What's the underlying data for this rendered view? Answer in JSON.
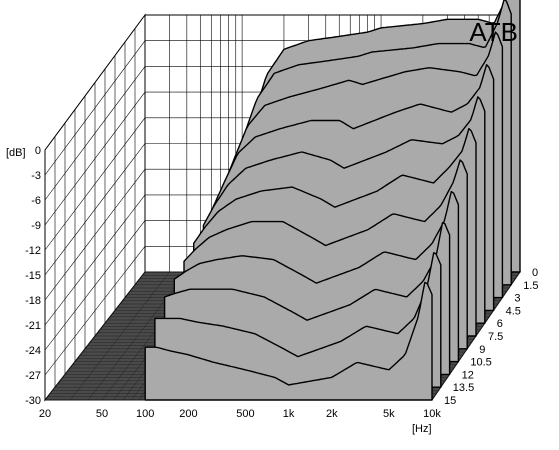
{
  "chart_data": {
    "type": "waterfall",
    "title": "ATB",
    "x_unit_label": "[Hz]",
    "y_unit_label": "[dB]",
    "x_ticks": [
      "20",
      "50",
      "100",
      "200",
      "500",
      "1k",
      "2k",
      "5k",
      "10k"
    ],
    "x_tick_values": [
      20,
      50,
      100,
      200,
      500,
      1000,
      2000,
      5000,
      10000
    ],
    "y_ticks": [
      "0",
      "-3",
      "-6",
      "-9",
      "-12",
      "-15",
      "-18",
      "-21",
      "-24",
      "-27",
      "-30"
    ],
    "y_tick_values": [
      0,
      -3,
      -6,
      -9,
      -12,
      -15,
      -18,
      -21,
      -24,
      -27,
      -30
    ],
    "z_ticks": [
      "0",
      "1.5",
      "3",
      "4.5",
      "6",
      "7.5",
      "9",
      "10.5",
      "12",
      "13.5",
      "15"
    ],
    "z_tick_values": [
      0,
      1.5,
      3,
      4.5,
      6,
      7.5,
      9,
      10.5,
      12,
      13.5,
      15
    ],
    "xlim": [
      20,
      10000
    ],
    "ylim": [
      -30,
      0
    ],
    "zlim": [
      0,
      15
    ],
    "x_scale": "log",
    "grid": true,
    "colors": {
      "fill": "#aaaaaa",
      "line": "#000000",
      "floor": "#4a4a4a",
      "background": "#ffffff"
    },
    "series": [
      {
        "name": "0",
        "x": [
          100,
          120,
          150,
          200,
          300,
          500,
          800,
          1000,
          2000,
          3000,
          5000,
          6500,
          8000,
          9000,
          10000
        ],
        "y": [
          -16,
          -12,
          -7,
          -4,
          -3,
          -2.5,
          -2,
          -1.5,
          -1,
          -0.5,
          -0.5,
          -1,
          2,
          6,
          3
        ]
      },
      {
        "name": "1.5",
        "x": [
          100,
          120,
          150,
          200,
          300,
          500,
          800,
          1000,
          2000,
          3000,
          5000,
          6500,
          8000,
          9000,
          10000
        ],
        "y": [
          -16.5,
          -12.5,
          -8,
          -5,
          -4,
          -3.5,
          -3,
          -2.5,
          -2,
          -1.5,
          -1.5,
          -2,
          1,
          4,
          2
        ]
      },
      {
        "name": "3",
        "x": [
          100,
          120,
          150,
          200,
          300,
          500,
          800,
          1000,
          2000,
          3000,
          5000,
          6500,
          8000,
          9000,
          10000
        ],
        "y": [
          -17,
          -13.5,
          -9.5,
          -7,
          -6,
          -5,
          -4,
          -4.5,
          -3,
          -2.5,
          -3,
          -3.5,
          -1,
          2,
          0
        ]
      },
      {
        "name": "4.5",
        "x": [
          100,
          120,
          150,
          200,
          300,
          500,
          800,
          1000,
          2000,
          3000,
          5000,
          6500,
          8000,
          9000,
          10000
        ],
        "y": [
          -17.5,
          -14.5,
          -11,
          -9,
          -8,
          -7,
          -7,
          -8,
          -6,
          -5,
          -6,
          -5,
          -3,
          0,
          -2
        ]
      },
      {
        "name": "6",
        "x": [
          100,
          120,
          150,
          200,
          300,
          500,
          800,
          1000,
          2000,
          3000,
          5000,
          6500,
          8000,
          9000,
          10000
        ],
        "y": [
          -18,
          -15.5,
          -13,
          -11,
          -10,
          -9,
          -10,
          -11,
          -9,
          -7.5,
          -8,
          -7,
          -5,
          -2,
          -4
        ]
      },
      {
        "name": "7.5",
        "x": [
          100,
          120,
          150,
          200,
          300,
          500,
          800,
          1000,
          2000,
          3000,
          5000,
          6500,
          8000,
          9000,
          10000
        ],
        "y": [
          -18.5,
          -16.5,
          -14.5,
          -13,
          -12,
          -11.5,
          -13,
          -14,
          -12,
          -10,
          -11,
          -9,
          -7,
          -4,
          -6
        ]
      },
      {
        "name": "9",
        "x": [
          100,
          120,
          150,
          200,
          300,
          500,
          800,
          1000,
          2000,
          3000,
          5000,
          6500,
          8000,
          9000,
          10000
        ],
        "y": [
          -19,
          -17.5,
          -16,
          -15,
          -14,
          -14,
          -16,
          -17,
          -15,
          -13,
          -14,
          -12,
          -9,
          -6,
          -8
        ]
      },
      {
        "name": "10.5",
        "x": [
          100,
          120,
          150,
          200,
          300,
          500,
          800,
          1000,
          2000,
          3000,
          5000,
          6500,
          8000,
          9000,
          10000
        ],
        "y": [
          -19.5,
          -18.5,
          -17.5,
          -17,
          -16.5,
          -17,
          -19,
          -20,
          -18,
          -16,
          -17,
          -15,
          -12,
          -8,
          -10
        ]
      },
      {
        "name": "12",
        "x": [
          100,
          120,
          150,
          200,
          300,
          500,
          800,
          1000,
          2000,
          3000,
          5000,
          6500,
          8000,
          9000,
          10000
        ],
        "y": [
          -20,
          -19.5,
          -19,
          -19,
          -19,
          -20,
          -22,
          -23,
          -21,
          -19,
          -20,
          -18,
          -15,
          -10,
          -12
        ]
      },
      {
        "name": "13.5",
        "x": [
          100,
          120,
          150,
          200,
          300,
          500,
          800,
          1000,
          2000,
          3000,
          5000,
          6500,
          8000,
          9000,
          10000
        ],
        "y": [
          -21,
          -21,
          -21,
          -21.5,
          -22,
          -23,
          -25,
          -26,
          -24,
          -22,
          -23,
          -21,
          -17,
          -12,
          -14
        ]
      },
      {
        "name": "15",
        "x": [
          100,
          120,
          150,
          200,
          300,
          500,
          800,
          1000,
          2000,
          3000,
          5000,
          6500,
          8000,
          9000,
          10000
        ],
        "y": [
          -23,
          -23,
          -23.5,
          -24,
          -25,
          -26,
          -27,
          -28,
          -27,
          -25,
          -26,
          -24,
          -19,
          -14,
          -16
        ]
      }
    ]
  }
}
